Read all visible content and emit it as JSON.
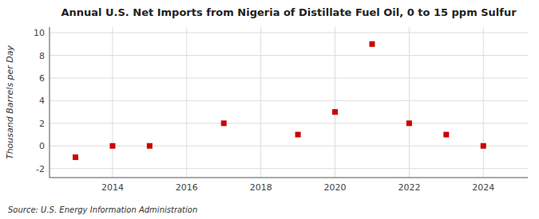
{
  "chart_data": {
    "type": "scatter",
    "title": "Annual U.S. Net Imports from Nigeria of Distillate Fuel Oil, 0 to 15 ppm Sulfur",
    "ylabel": "Thousand Barrels per Day",
    "annotations": [
      "Source: U.S. Energy Information Administration"
    ],
    "x": [
      2013,
      2014,
      2015,
      2017,
      2019,
      2020,
      2021,
      2022,
      2023,
      2024
    ],
    "y": [
      -1,
      0,
      0,
      2,
      1,
      3,
      9,
      2,
      1,
      0
    ],
    "color": "#cc0000",
    "marker": "square",
    "grid": true,
    "xlim": [
      2012.3,
      2025.2
    ],
    "ylim": [
      -2.8,
      10.5
    ],
    "xticks": [
      2014,
      2016,
      2018,
      2020,
      2022,
      2024
    ],
    "yticks": [
      -2,
      0,
      2,
      4,
      6,
      8,
      10
    ]
  }
}
